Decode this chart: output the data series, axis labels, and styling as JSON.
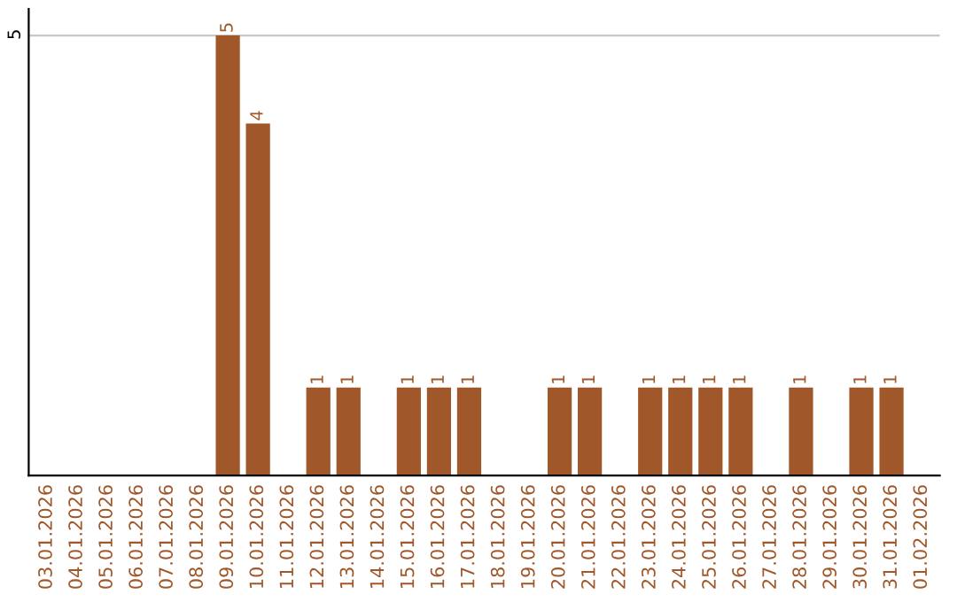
{
  "chart_data": {
    "type": "bar",
    "categories": [
      "03.01.2026",
      "04.01.2026",
      "05.01.2026",
      "06.01.2026",
      "07.01.2026",
      "08.01.2026",
      "09.01.2026",
      "10.01.2026",
      "11.01.2026",
      "12.01.2026",
      "13.01.2026",
      "14.01.2026",
      "15.01.2026",
      "16.01.2026",
      "17.01.2026",
      "18.01.2026",
      "19.01.2026",
      "20.01.2026",
      "21.01.2026",
      "22.01.2026",
      "23.01.2026",
      "24.01.2026",
      "25.01.2026",
      "26.01.2026",
      "27.01.2026",
      "28.01.2026",
      "29.01.2026",
      "30.01.2026",
      "31.01.2026",
      "01.02.2026"
    ],
    "values": [
      0,
      0,
      0,
      0,
      0,
      0,
      5,
      4,
      0,
      1,
      1,
      0,
      1,
      1,
      1,
      0,
      0,
      1,
      1,
      0,
      1,
      1,
      1,
      1,
      0,
      1,
      0,
      1,
      1,
      0
    ],
    "value_labels": [
      null,
      null,
      null,
      null,
      null,
      null,
      "5",
      "4",
      null,
      "1",
      "1",
      null,
      "1",
      "1",
      "1",
      null,
      null,
      "1",
      "1",
      null,
      "1",
      "1",
      "1",
      "1",
      null,
      "1",
      null,
      "1",
      "1",
      null
    ],
    "color": "#a0572a",
    "ylim": [
      0,
      5.3
    ],
    "yticks": [
      5
    ],
    "grid": "y",
    "legend": false
  }
}
